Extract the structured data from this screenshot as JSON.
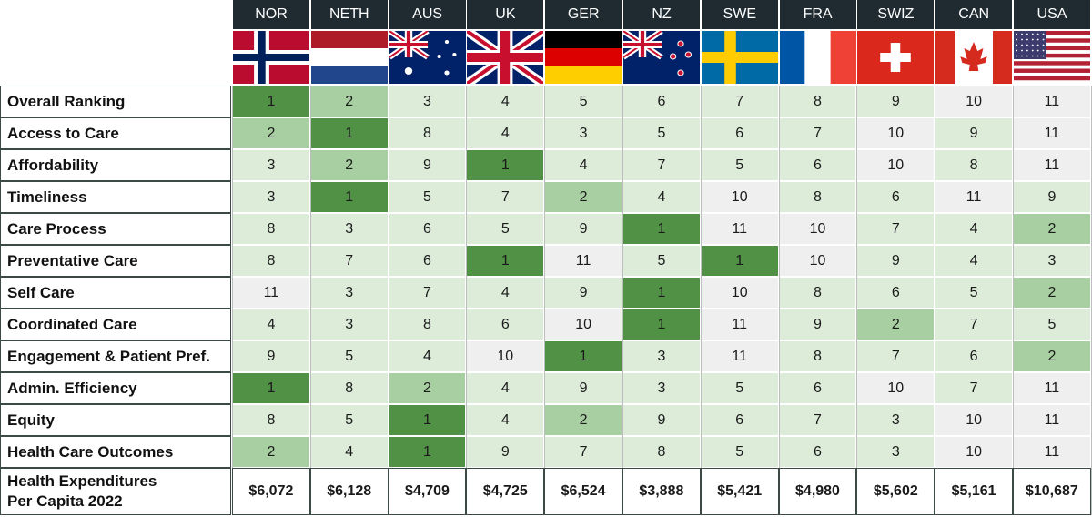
{
  "chart_data": {
    "type": "table",
    "columns": [
      "NOR",
      "NETH",
      "AUS",
      "UK",
      "GER",
      "NZ",
      "SWE",
      "FRA",
      "SWIZ",
      "CAN",
      "USA"
    ],
    "flags": [
      "norway-flag",
      "netherlands-flag",
      "australia-flag",
      "uk-flag",
      "germany-flag",
      "new-zealand-flag",
      "sweden-flag",
      "france-flag",
      "switzerland-flag",
      "canada-flag",
      "usa-flag"
    ],
    "rows": [
      {
        "label": "Overall Ranking",
        "values": [
          1,
          2,
          3,
          4,
          5,
          6,
          7,
          8,
          9,
          10,
          11
        ]
      },
      {
        "label": "Access to Care",
        "values": [
          2,
          1,
          8,
          4,
          3,
          5,
          6,
          7,
          10,
          9,
          11
        ]
      },
      {
        "label": "Affordability",
        "values": [
          3,
          2,
          9,
          1,
          4,
          7,
          5,
          6,
          10,
          8,
          11
        ]
      },
      {
        "label": "Timeliness",
        "values": [
          3,
          1,
          5,
          7,
          2,
          4,
          10,
          8,
          6,
          11,
          9
        ]
      },
      {
        "label": "Care Process",
        "values": [
          8,
          3,
          6,
          5,
          9,
          1,
          11,
          10,
          7,
          4,
          2
        ]
      },
      {
        "label": "Preventative Care",
        "values": [
          8,
          7,
          6,
          1,
          11,
          5,
          1,
          10,
          9,
          4,
          3
        ]
      },
      {
        "label": "Self Care",
        "values": [
          11,
          3,
          7,
          4,
          9,
          1,
          10,
          8,
          6,
          5,
          2
        ]
      },
      {
        "label": "Coordinated Care",
        "values": [
          4,
          3,
          8,
          6,
          10,
          1,
          11,
          9,
          2,
          7,
          5
        ]
      },
      {
        "label": "Engagement & Patient Pref.",
        "values": [
          9,
          5,
          4,
          10,
          1,
          3,
          11,
          8,
          7,
          6,
          2
        ]
      },
      {
        "label": "Admin. Efficiency",
        "values": [
          1,
          8,
          2,
          4,
          9,
          3,
          5,
          6,
          10,
          7,
          11
        ]
      },
      {
        "label": "Equity",
        "values": [
          8,
          5,
          1,
          4,
          2,
          9,
          6,
          7,
          3,
          10,
          11
        ]
      },
      {
        "label": "Health Care Outcomes",
        "values": [
          2,
          4,
          1,
          9,
          7,
          8,
          5,
          6,
          3,
          10,
          11
        ]
      }
    ],
    "expenditure_row": {
      "label_line1": "Health Expenditures",
      "label_line2": "Per Capita 2022",
      "values": [
        "$6,072",
        "$6,128",
        "$4,709",
        "$4,725",
        "$6,524",
        "$3,888",
        "$5,421",
        "$4,980",
        "$5,602",
        "$5,161",
        "$10,687"
      ]
    },
    "colors": {
      "rank1": "#519145",
      "rank2": "#a8cfa1",
      "rank3to9": "#dcecd9",
      "rank10to11": "#efefef",
      "header_bg": "#1f2b30",
      "header_text": "#ffffff",
      "border": "#3b4a44"
    }
  }
}
